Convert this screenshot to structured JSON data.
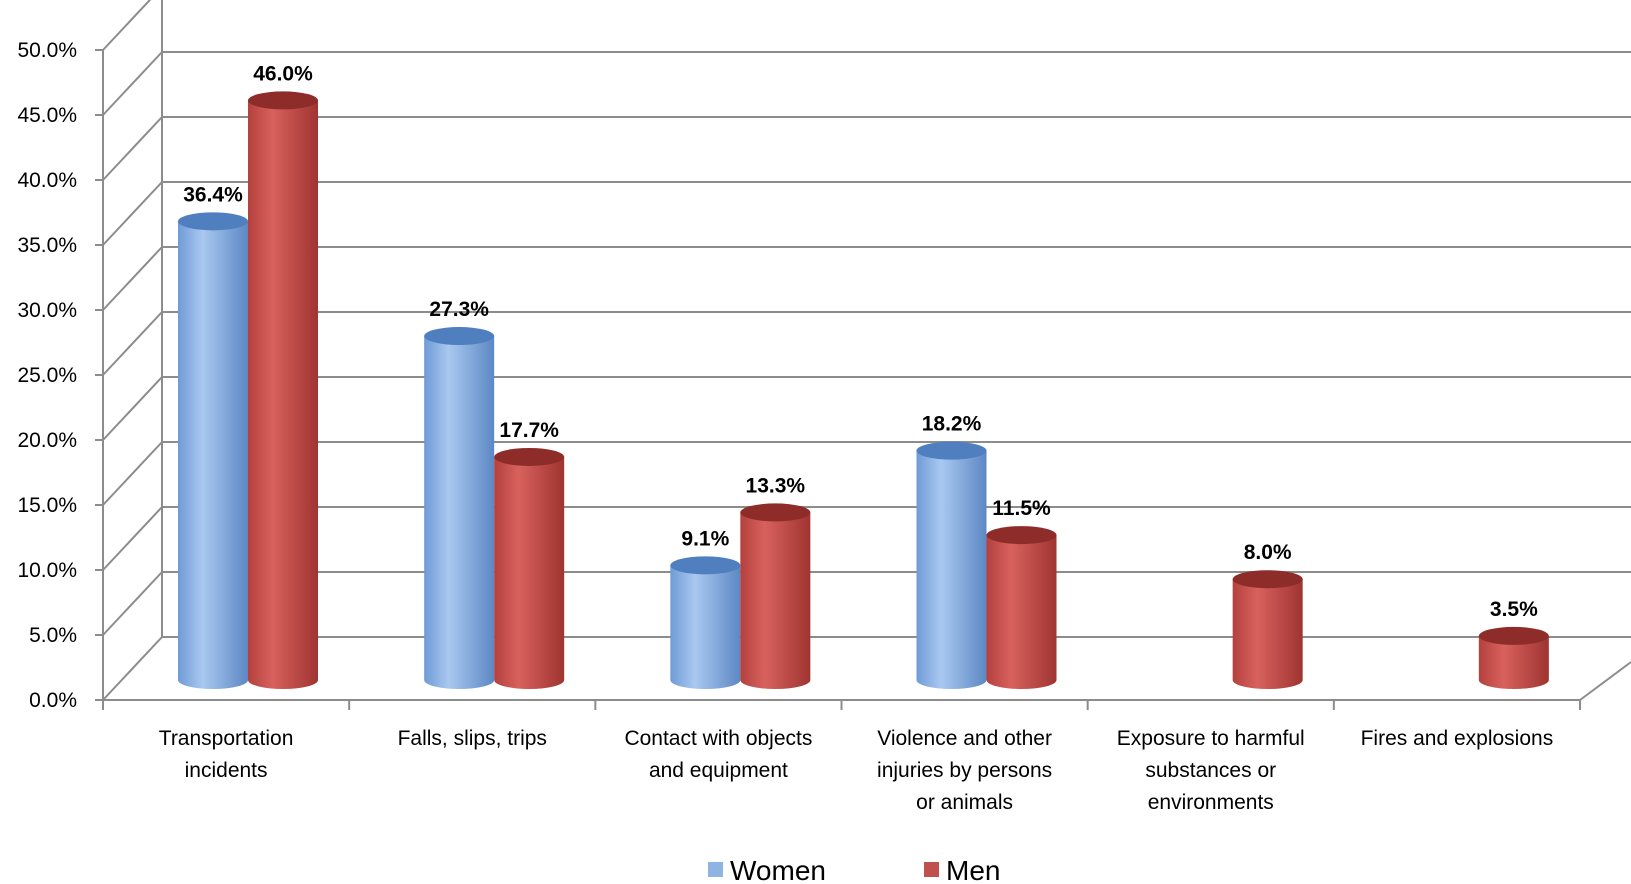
{
  "chart_data": {
    "type": "bar",
    "categories": [
      [
        "Transportation",
        "incidents"
      ],
      [
        "Falls, slips, trips"
      ],
      [
        "Contact with objects",
        "and equipment"
      ],
      [
        "Violence and other",
        "injuries by persons",
        "or animals"
      ],
      [
        "Exposure to harmful",
        "substances or",
        "environments"
      ],
      [
        "Fires and explosions"
      ]
    ],
    "series": [
      {
        "name": "Women",
        "values": [
          36.4,
          27.3,
          9.1,
          18.2,
          null,
          null
        ],
        "labels": [
          "36.4%",
          "27.3%",
          "9.1%",
          "18.2%",
          "",
          ""
        ]
      },
      {
        "name": "Men",
        "values": [
          46.0,
          17.7,
          13.3,
          11.5,
          8.0,
          3.5
        ],
        "labels": [
          "46.0%",
          "17.7%",
          "13.3%",
          "11.5%",
          "8.0%",
          "3.5%"
        ]
      }
    ],
    "y_ticks": [
      "0.0%",
      "5.0%",
      "10.0%",
      "15.0%",
      "20.0%",
      "25.0%",
      "30.0%",
      "35.0%",
      "40.0%",
      "45.0%",
      "50.0%"
    ],
    "ylim": [
      0,
      50
    ],
    "grid": true,
    "legend": "bottom"
  },
  "colors": {
    "women": "#8eb4e3",
    "women_dark": "#4f7fbf",
    "men": "#c0504d",
    "men_dark": "#8e2c2a",
    "grid": "#8c8c8c"
  }
}
